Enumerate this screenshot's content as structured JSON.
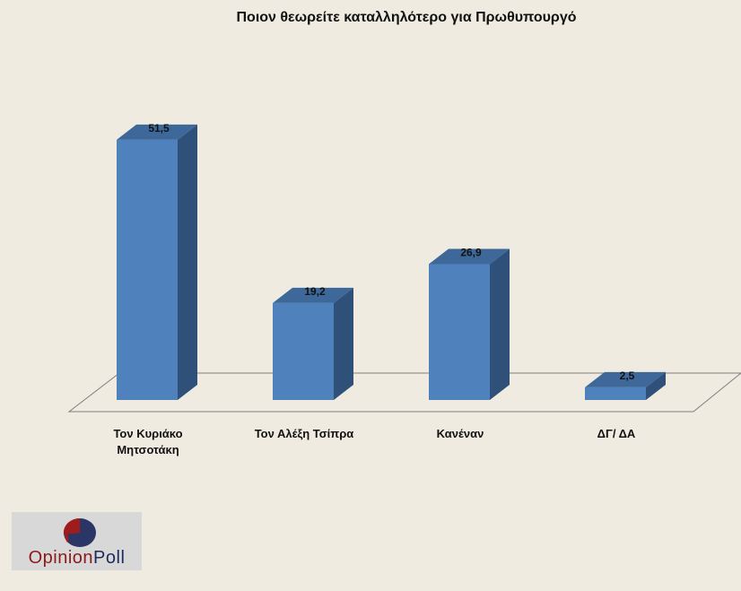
{
  "chart_data": {
    "type": "bar",
    "title": "Ποιον θεωρείτε καταλληλότερο για Πρωθυπουργό",
    "categories": [
      "Τον Κυριάκο\nΜητσοτάκη",
      "Τον Αλέξη Τσίπρα",
      "Κανέναν",
      "ΔΓ/ ΔΑ"
    ],
    "values": [
      51.5,
      19.2,
      26.9,
      2.5
    ],
    "value_labels": [
      "51,5",
      "19,2",
      "26,9",
      "2,5"
    ],
    "xlabel": "",
    "ylabel": "",
    "ylim": [
      0,
      60
    ],
    "grid": false,
    "legend": "none",
    "colors": {
      "bar_front": "#4f81bd",
      "bar_side": "#2f5078",
      "bar_top": "#3d6899",
      "floor_line": "#7f7f7f"
    }
  },
  "logo": {
    "text_part1": "Opinion",
    "text_part2": "Poll",
    "color_red": "#a01c1c",
    "color_navy": "#2b3566"
  }
}
